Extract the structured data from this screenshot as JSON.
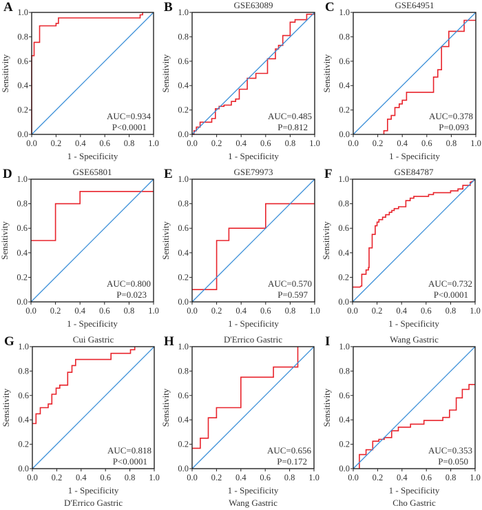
{
  "figure": {
    "colors": {
      "roc": "#e8232b",
      "reference": "#3b8fd8",
      "frame": "#222222"
    }
  },
  "chart_data": [
    {
      "type": "line",
      "panel": "A",
      "title": "",
      "caption": "",
      "xlabel": "1 - Specificity",
      "ylabel": "Sensitivity",
      "xlim": [
        0,
        1
      ],
      "ylim": [
        0,
        1
      ],
      "xticks": [
        "0.0",
        "0.2",
        "0.4",
        "0.6",
        "0.8",
        "1.0"
      ],
      "yticks": [
        "0.0",
        "0.2",
        "0.4",
        "0.6",
        "0.8",
        "1.0"
      ],
      "annotations": [
        "AUC=0.934",
        "P<0.0001"
      ],
      "series": [
        {
          "name": "ROC",
          "x": [
            0,
            0,
            0.02,
            0.02,
            0.065,
            0.065,
            0.2,
            0.2,
            0.22,
            0.22,
            0.89,
            0.89,
            0.91,
            0.91
          ],
          "y": [
            0,
            0.645,
            0.645,
            0.755,
            0.755,
            0.89,
            0.89,
            0.91,
            0.91,
            0.955,
            0.955,
            0.98,
            0.98,
            1.0
          ]
        },
        {
          "name": "Reference",
          "x": [
            0,
            1
          ],
          "y": [
            0,
            1
          ]
        }
      ]
    },
    {
      "type": "line",
      "panel": "B",
      "title": "",
      "caption": "GSE63089",
      "xlabel": "1 - Specificity",
      "ylabel": "Sensitivity",
      "xlim": [
        0,
        1
      ],
      "ylim": [
        0,
        1
      ],
      "xticks": [
        "0.0",
        "0.2",
        "0.4",
        "0.6",
        "0.8",
        "1.0"
      ],
      "yticks": [
        "0.0",
        "0.2",
        "0.4",
        "0.6",
        "0.8",
        "1.0"
      ],
      "annotations": [
        "AUC=0.485",
        "P=0.812"
      ],
      "series": [
        {
          "name": "ROC",
          "x": [
            0,
            0.015,
            0.015,
            0.035,
            0.035,
            0.065,
            0.065,
            0.16,
            0.16,
            0.19,
            0.19,
            0.22,
            0.22,
            0.26,
            0.26,
            0.32,
            0.32,
            0.355,
            0.355,
            0.385,
            0.385,
            0.45,
            0.45,
            0.52,
            0.52,
            0.615,
            0.615,
            0.68,
            0.68,
            0.705,
            0.705,
            0.74,
            0.74,
            0.8,
            0.8,
            0.84,
            0.84,
            0.935,
            0.935,
            1.0
          ],
          "y": [
            0,
            0,
            0.03,
            0.03,
            0.06,
            0.06,
            0.1,
            0.1,
            0.13,
            0.13,
            0.21,
            0.21,
            0.23,
            0.23,
            0.24,
            0.24,
            0.27,
            0.27,
            0.29,
            0.29,
            0.37,
            0.37,
            0.46,
            0.46,
            0.5,
            0.5,
            0.62,
            0.62,
            0.7,
            0.7,
            0.73,
            0.73,
            0.81,
            0.81,
            0.92,
            0.92,
            0.94,
            0.94,
            0.985,
            0.985
          ]
        },
        {
          "name": "Reference",
          "x": [
            0,
            1
          ],
          "y": [
            0,
            1
          ]
        }
      ]
    },
    {
      "type": "line",
      "panel": "C",
      "title": "",
      "caption": "GSE64951",
      "xlabel": "1 - Specificity",
      "ylabel": "Sensitivity",
      "xlim": [
        0,
        1
      ],
      "ylim": [
        0,
        1
      ],
      "xticks": [
        "0.0",
        "0.2",
        "0.4",
        "0.6",
        "0.8",
        "1.0"
      ],
      "yticks": [
        "0.0",
        "0.2",
        "0.4",
        "0.6",
        "0.8",
        "1.0"
      ],
      "annotations": [
        "AUC=0.378",
        "P=0.093"
      ],
      "series": [
        {
          "name": "ROC",
          "x": [
            0.25,
            0.25,
            0.28,
            0.28,
            0.31,
            0.31,
            0.34,
            0.34,
            0.375,
            0.375,
            0.4,
            0.4,
            0.435,
            0.435,
            0.655,
            0.655,
            0.69,
            0.69,
            0.72,
            0.72,
            0.78,
            0.78,
            0.905,
            0.905,
            1.0
          ],
          "y": [
            0,
            0.03,
            0.03,
            0.125,
            0.125,
            0.155,
            0.155,
            0.22,
            0.22,
            0.25,
            0.25,
            0.28,
            0.28,
            0.345,
            0.345,
            0.47,
            0.47,
            0.53,
            0.53,
            0.72,
            0.72,
            0.845,
            0.845,
            0.935,
            0.935
          ]
        },
        {
          "name": "Reference",
          "x": [
            0,
            1
          ],
          "y": [
            0,
            1
          ]
        }
      ]
    },
    {
      "type": "line",
      "panel": "D",
      "title": "",
      "caption": "GSE65801",
      "xlabel": "1 - Specificity",
      "ylabel": "Sensitivity",
      "xlim": [
        0,
        1
      ],
      "ylim": [
        0,
        1
      ],
      "xticks": [
        "0.0",
        "0.2",
        "0.4",
        "0.6",
        "0.8",
        "1.0"
      ],
      "yticks": [
        "0.0",
        "0.2",
        "0.4",
        "0.6",
        "0.8",
        "1.0"
      ],
      "annotations": [
        "AUC=0.800",
        "P=0.023"
      ],
      "series": [
        {
          "name": "ROC",
          "x": [
            0,
            0.2,
            0.2,
            0.4,
            0.4,
            1.0
          ],
          "y": [
            0.5,
            0.5,
            0.8,
            0.8,
            0.9,
            0.9
          ]
        },
        {
          "name": "Reference",
          "x": [
            0,
            1
          ],
          "y": [
            0,
            1
          ]
        }
      ]
    },
    {
      "type": "line",
      "panel": "E",
      "title": "",
      "caption": "GSE79973",
      "xlabel": "1 - Specificity",
      "ylabel": "Sensitivity",
      "xlim": [
        0,
        1
      ],
      "ylim": [
        0,
        1
      ],
      "xticks": [
        "0.0",
        "0.2",
        "0.4",
        "0.6",
        "0.8",
        "1.0"
      ],
      "yticks": [
        "0.0",
        "0.2",
        "0.4",
        "0.6",
        "0.8",
        "1.0"
      ],
      "annotations": [
        "AUC=0.570",
        "P=0.597"
      ],
      "series": [
        {
          "name": "ROC",
          "x": [
            0,
            0.2,
            0.2,
            0.3,
            0.3,
            0.6,
            0.6,
            1.0
          ],
          "y": [
            0.1,
            0.1,
            0.5,
            0.5,
            0.6,
            0.6,
            0.8,
            0.8
          ]
        },
        {
          "name": "Reference",
          "x": [
            0,
            1
          ],
          "y": [
            0,
            1
          ]
        }
      ]
    },
    {
      "type": "line",
      "panel": "F",
      "title": "",
      "caption": "GSE84787",
      "xlabel": "1 - Specificity",
      "ylabel": "Sensitivity",
      "xlim": [
        0,
        1
      ],
      "ylim": [
        0,
        1
      ],
      "xticks": [
        "0.0",
        "0.2",
        "0.4",
        "0.6",
        "0.8",
        "1.0"
      ],
      "yticks": [
        "0.0",
        "0.2",
        "0.4",
        "0.6",
        "0.8",
        "1.0"
      ],
      "annotations": [
        "AUC=0.732",
        "P<0.0001"
      ],
      "series": [
        {
          "name": "ROC",
          "x": [
            0,
            0.06,
            0.07,
            0.075,
            0.075,
            0.11,
            0.11,
            0.13,
            0.13,
            0.135,
            0.135,
            0.16,
            0.16,
            0.185,
            0.185,
            0.2,
            0.2,
            0.215,
            0.215,
            0.245,
            0.245,
            0.27,
            0.27,
            0.3,
            0.3,
            0.32,
            0.32,
            0.34,
            0.34,
            0.375,
            0.375,
            0.4,
            0.4,
            0.435,
            0.435,
            0.47,
            0.47,
            0.5,
            0.5,
            0.62,
            0.62,
            0.66,
            0.66,
            0.8,
            0.8,
            0.86,
            0.86,
            0.9,
            0.9,
            0.96,
            0.96,
            0.985,
            1.0
          ],
          "y": [
            0.12,
            0.12,
            0.13,
            0.13,
            0.225,
            0.225,
            0.26,
            0.26,
            0.28,
            0.28,
            0.44,
            0.44,
            0.55,
            0.55,
            0.62,
            0.62,
            0.65,
            0.65,
            0.67,
            0.67,
            0.69,
            0.69,
            0.71,
            0.71,
            0.73,
            0.73,
            0.745,
            0.745,
            0.76,
            0.76,
            0.775,
            0.775,
            0.775,
            0.775,
            0.825,
            0.825,
            0.845,
            0.845,
            0.86,
            0.86,
            0.875,
            0.875,
            0.89,
            0.89,
            0.905,
            0.905,
            0.92,
            0.92,
            0.95,
            0.95,
            0.975,
            0.985,
            1.0
          ]
        },
        {
          "name": "Reference",
          "x": [
            0,
            1
          ],
          "y": [
            0,
            1
          ]
        }
      ]
    },
    {
      "type": "line",
      "panel": "G",
      "title": "",
      "caption": "Cui Gastric",
      "xlabel": "1 - Specificity",
      "ylabel": "Sensitivity",
      "xlim": [
        0,
        1
      ],
      "ylim": [
        0,
        1
      ],
      "xticks": [
        "0.0",
        "0.2",
        "0.4",
        "0.6",
        "0.8",
        "1.0"
      ],
      "yticks": [
        "0.0",
        "0.2",
        "0.4",
        "0.6",
        "0.8",
        "1.0"
      ],
      "annotations": [
        "AUC=0.818",
        "P<0.0001"
      ],
      "series": [
        {
          "name": "ROC",
          "x": [
            0,
            0.03,
            0.03,
            0.065,
            0.065,
            0.13,
            0.13,
            0.16,
            0.16,
            0.195,
            0.195,
            0.225,
            0.225,
            0.29,
            0.29,
            0.325,
            0.325,
            0.355,
            0.355,
            0.645,
            0.645,
            0.805,
            0.805,
            0.84,
            0.84
          ],
          "y": [
            0.37,
            0.37,
            0.45,
            0.45,
            0.5,
            0.5,
            0.53,
            0.53,
            0.61,
            0.61,
            0.66,
            0.66,
            0.685,
            0.685,
            0.79,
            0.79,
            0.845,
            0.845,
            0.895,
            0.895,
            0.945,
            0.945,
            0.975,
            0.975,
            1.0
          ]
        },
        {
          "name": "Reference",
          "x": [
            0,
            1
          ],
          "y": [
            0,
            1
          ]
        }
      ]
    },
    {
      "type": "line",
      "panel": "H",
      "title": "",
      "caption": "D'Errico Gastric",
      "xlabel": "1 - Specificity",
      "ylabel": "Sensitivity",
      "xlim": [
        0,
        1
      ],
      "ylim": [
        0,
        1
      ],
      "xticks": [
        "0.0",
        "0.2",
        "0.4",
        "0.6",
        "0.8",
        "1.0"
      ],
      "yticks": [
        "0.0",
        "0.2",
        "0.4",
        "0.6",
        "0.8",
        "1.0"
      ],
      "annotations": [
        "AUC=0.656",
        "P=0.172"
      ],
      "series": [
        {
          "name": "ROC",
          "x": [
            0,
            0.067,
            0.067,
            0.133,
            0.133,
            0.2,
            0.2,
            0.4,
            0.4,
            0.667,
            0.667,
            0.867,
            0.867
          ],
          "y": [
            0.167,
            0.167,
            0.25,
            0.25,
            0.417,
            0.417,
            0.5,
            0.5,
            0.75,
            0.75,
            0.833,
            0.833,
            1.0
          ]
        },
        {
          "name": "Reference",
          "x": [
            0,
            1
          ],
          "y": [
            0,
            1
          ]
        }
      ]
    },
    {
      "type": "line",
      "panel": "I",
      "title": "",
      "caption": "Wang Gastric",
      "xlabel": "1 - Specificity",
      "ylabel": "Sensitivity",
      "xlim": [
        0,
        1
      ],
      "ylim": [
        0,
        1
      ],
      "xticks": [
        "0.0",
        "0.2",
        "0.4",
        "0.6",
        "0.8",
        "1.0"
      ],
      "yticks": [
        "0.0",
        "0.2",
        "0.4",
        "0.6",
        "0.8",
        "1.0"
      ],
      "annotations": [
        "AUC=0.353",
        "P=0.050"
      ],
      "series": [
        {
          "name": "ROC",
          "x": [
            0.05,
            0.05,
            0.105,
            0.105,
            0.16,
            0.16,
            0.21,
            0.21,
            0.255,
            0.255,
            0.315,
            0.315,
            0.37,
            0.37,
            0.47,
            0.47,
            0.58,
            0.58,
            0.735,
            0.735,
            0.79,
            0.79,
            0.845,
            0.845,
            0.895,
            0.895,
            0.95,
            0.95,
            1.0
          ],
          "y": [
            0,
            0.115,
            0.115,
            0.155,
            0.155,
            0.225,
            0.225,
            0.24,
            0.24,
            0.255,
            0.255,
            0.31,
            0.31,
            0.34,
            0.34,
            0.365,
            0.365,
            0.395,
            0.395,
            0.42,
            0.42,
            0.48,
            0.48,
            0.58,
            0.58,
            0.65,
            0.65,
            0.69,
            0.69
          ]
        },
        {
          "name": "Reference",
          "x": [
            0,
            1
          ],
          "y": [
            0,
            1
          ]
        }
      ]
    }
  ],
  "bottom_captions": [
    "D'Errico Gastric",
    "Wang Gastric",
    "Cho Gastric"
  ]
}
